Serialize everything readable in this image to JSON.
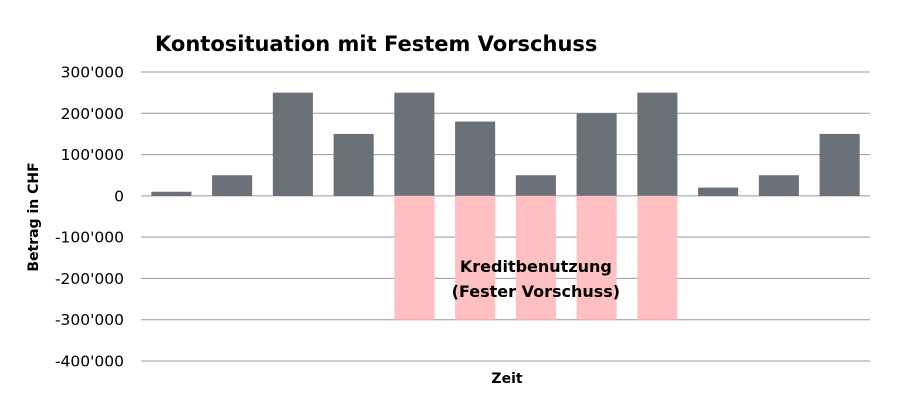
{
  "chart_data": {
    "type": "bar",
    "title": "Kontosituation mit Festem Vorschuss",
    "xlabel": "Zeit",
    "ylabel": "Betrag in CHF",
    "ylim": [
      -400000,
      300000
    ],
    "yticks": [
      300000,
      200000,
      100000,
      0,
      -100000,
      -200000,
      -300000,
      -400000
    ],
    "ytick_labels": [
      "300'000",
      "200'000",
      "100'000",
      "0",
      "-100'000",
      "-200'000",
      "-300'000",
      "-400'000"
    ],
    "grid": true,
    "categories": [
      "",
      "",
      "",
      "",
      "",
      "",
      "",
      "",
      "",
      "",
      "",
      ""
    ],
    "series": [
      {
        "color": "#6b7178",
        "values": [
          10000,
          50000,
          250000,
          150000,
          250000,
          180000,
          50000,
          200000,
          250000,
          20000,
          50000,
          150000
        ]
      },
      {
        "color": "#ffc0c4",
        "values": [
          0,
          0,
          0,
          0,
          -300000,
          -300000,
          -300000,
          -300000,
          -300000,
          0,
          0,
          0
        ]
      }
    ],
    "annotations": [
      {
        "text": "Kreditbenutzung",
        "x_index": 6,
        "y": -185000
      },
      {
        "text": "(Fester Vorschuss)",
        "x_index": 6,
        "y": -245000
      }
    ]
  }
}
